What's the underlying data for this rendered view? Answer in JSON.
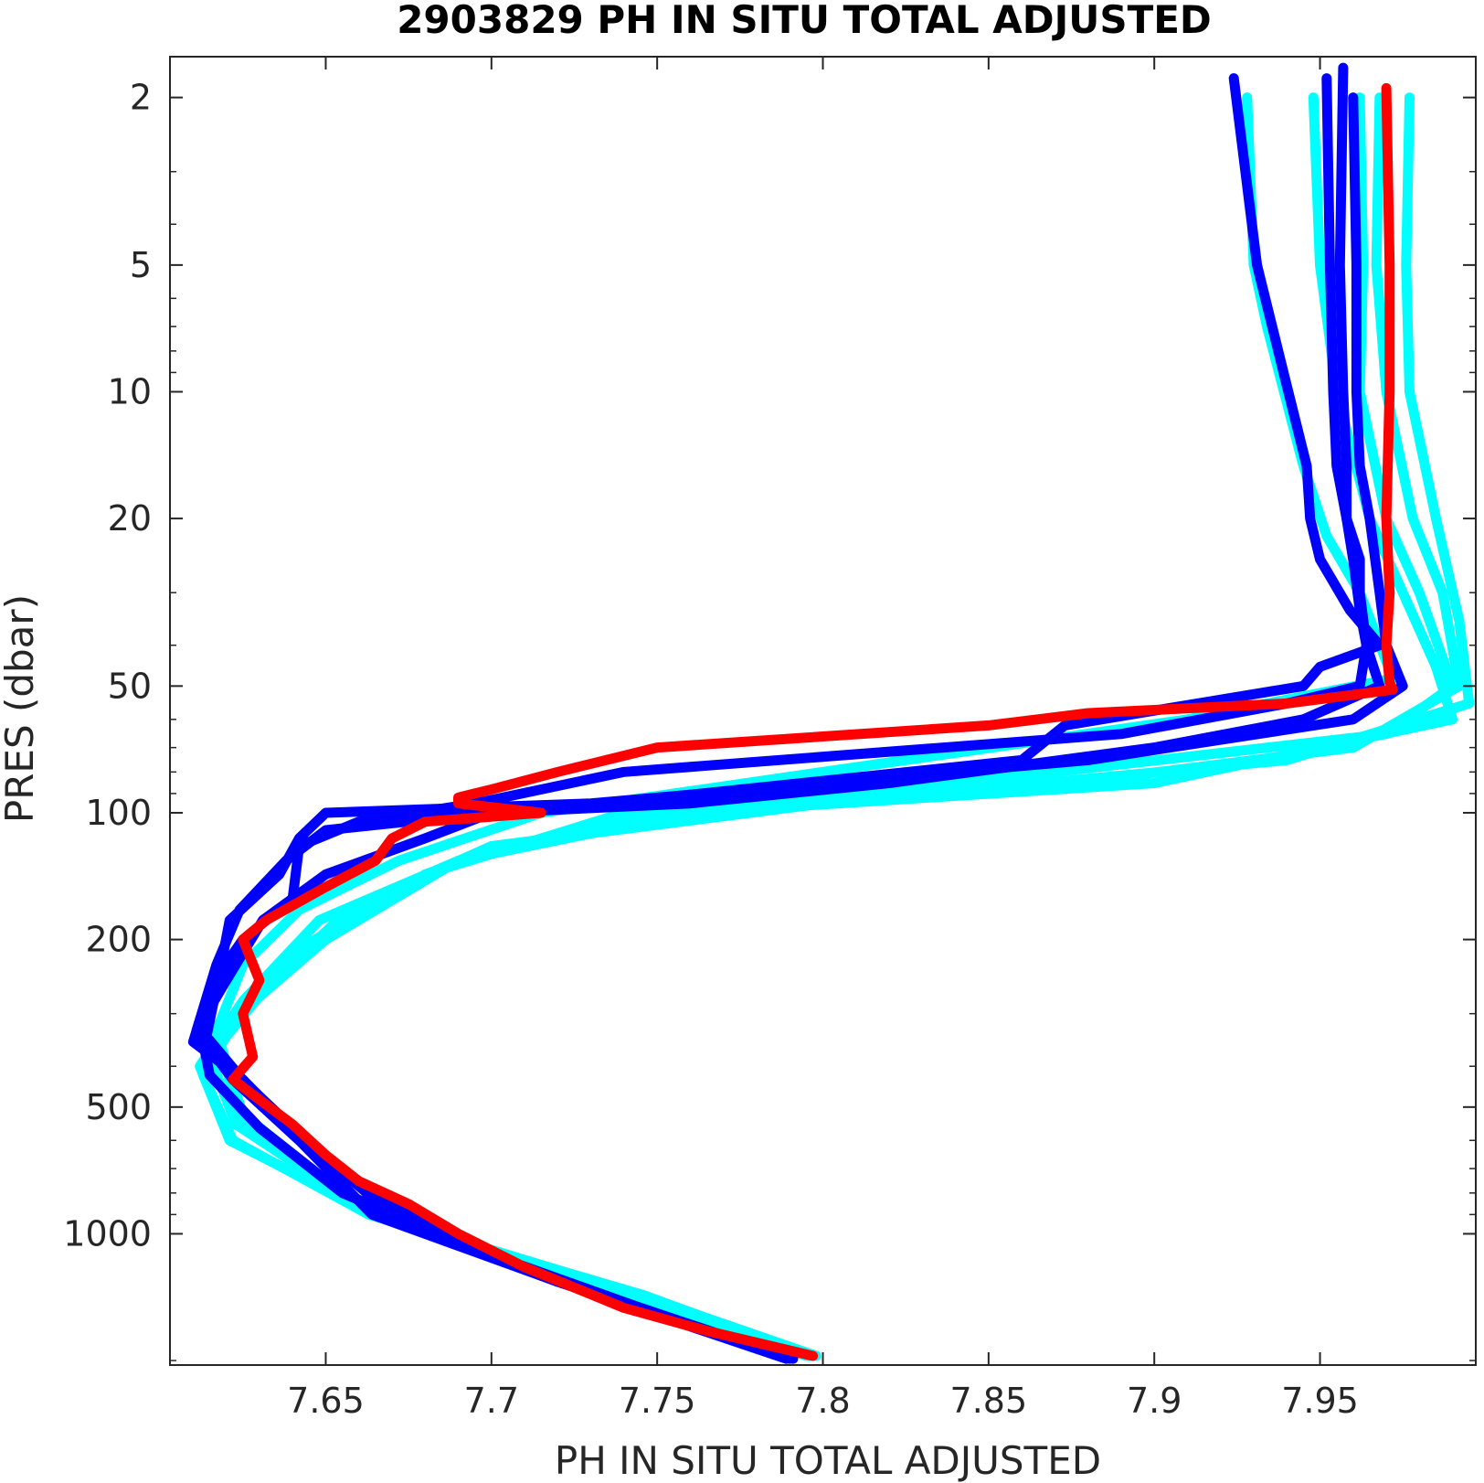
{
  "chart_data": {
    "type": "line",
    "title": "2903829  PH IN SITU TOTAL ADJUSTED",
    "xlabel": "PH IN SITU TOTAL ADJUSTED",
    "ylabel": "PRES (dbar)",
    "xlim": [
      7.603,
      7.997
    ],
    "ylim": [
      1.6,
      2050
    ],
    "y_scale": "log",
    "y_reversed": true,
    "grid": false,
    "x_ticks": [
      7.65,
      7.7,
      7.75,
      7.8,
      7.85,
      7.9,
      7.95
    ],
    "x_tick_labels": [
      "7.65",
      "7.7",
      "7.75",
      "7.8",
      "7.85",
      "7.9",
      "7.95"
    ],
    "y_ticks": [
      2,
      5,
      10,
      20,
      50,
      100,
      200,
      500,
      1000
    ],
    "y_tick_labels": [
      "2",
      "5",
      "10",
      "20",
      "50",
      "100",
      "200",
      "500",
      "1000"
    ],
    "colors": {
      "cyan": "#00ffff",
      "blue": "#0000ff",
      "red": "#ff0000",
      "axis": "#262626"
    },
    "series": [
      {
        "color": "#00ffff",
        "pres": [
          2,
          5,
          7,
          15,
          22,
          30,
          48,
          60,
          80,
          100,
          130,
          170,
          230,
          330,
          430,
          560,
          900,
          1400,
          1950
        ],
        "ph": [
          7.928,
          7.93,
          7.934,
          7.945,
          7.952,
          7.962,
          7.972,
          7.91,
          7.8,
          7.715,
          7.672,
          7.642,
          7.625,
          7.617,
          7.621,
          7.626,
          7.665,
          7.745,
          7.798
        ]
      },
      {
        "color": "#00ffff",
        "pres": [
          2,
          5,
          10,
          20,
          30,
          45,
          60,
          85,
          100,
          130,
          180,
          280,
          400,
          600,
          900,
          1400,
          1950
        ],
        "ph": [
          7.948,
          7.95,
          7.955,
          7.965,
          7.975,
          7.985,
          7.99,
          7.9,
          7.76,
          7.69,
          7.648,
          7.625,
          7.612,
          7.621,
          7.665,
          7.742,
          7.795
        ]
      },
      {
        "color": "#00ffff",
        "pres": [
          2,
          5,
          10,
          20,
          30,
          50,
          70,
          90,
          100,
          130,
          200,
          300,
          420,
          600,
          900,
          1400,
          1950
        ],
        "ph": [
          7.968,
          7.967,
          7.97,
          7.978,
          7.987,
          7.992,
          7.96,
          7.85,
          7.75,
          7.69,
          7.65,
          7.624,
          7.613,
          7.622,
          7.663,
          7.744,
          7.796
        ]
      },
      {
        "color": "#00ffff",
        "pres": [
          2,
          5,
          10,
          20,
          35,
          55,
          75,
          95,
          120,
          170,
          260,
          380,
          550,
          900,
          1400,
          1950
        ],
        "ph": [
          7.977,
          7.976,
          7.977,
          7.985,
          7.992,
          7.995,
          7.94,
          7.8,
          7.7,
          7.657,
          7.632,
          7.615,
          7.623,
          7.664,
          7.743,
          7.797
        ]
      },
      {
        "color": "#00ffff",
        "pres": [
          2,
          5,
          10,
          20,
          30,
          50,
          65,
          80,
          100,
          140,
          220,
          350,
          520,
          900,
          1400,
          1950
        ],
        "ph": [
          7.962,
          7.963,
          7.962,
          7.97,
          7.98,
          7.99,
          7.97,
          7.87,
          7.74,
          7.68,
          7.638,
          7.618,
          7.625,
          7.663,
          7.746,
          7.796
        ]
      },
      {
        "color": "#0000ff",
        "pres": [
          1.8,
          5,
          9,
          15,
          20,
          25,
          33,
          40,
          45,
          50,
          62,
          75,
          95,
          100,
          115,
          140,
          180,
          250,
          320,
          420,
          560,
          800,
          1100,
          1500,
          1980
        ],
        "ph": [
          7.924,
          7.931,
          7.939,
          7.946,
          7.947,
          7.95,
          7.959,
          7.968,
          7.95,
          7.945,
          7.873,
          7.86,
          7.735,
          7.7,
          7.68,
          7.65,
          7.631,
          7.62,
          7.612,
          7.615,
          7.63,
          7.655,
          7.697,
          7.745,
          7.791
        ]
      },
      {
        "color": "#0000ff",
        "pres": [
          1.7,
          5,
          10,
          15,
          20,
          25,
          33,
          40,
          50,
          55,
          65,
          80,
          95,
          105,
          120,
          160,
          200,
          260,
          350,
          430,
          600,
          850,
          1200,
          1500,
          1980
        ],
        "ph": [
          7.957,
          7.956,
          7.957,
          7.958,
          7.958,
          7.96,
          7.962,
          7.964,
          7.962,
          7.94,
          7.89,
          7.74,
          7.695,
          7.66,
          7.642,
          7.64,
          7.625,
          7.615,
          7.61,
          7.625,
          7.643,
          7.668,
          7.708,
          7.745,
          7.79
        ]
      },
      {
        "color": "#0000ff",
        "pres": [
          1.8,
          5,
          10,
          15,
          20,
          25,
          30,
          40,
          50,
          60,
          70,
          85,
          95,
          100,
          110,
          130,
          170,
          230,
          330,
          430,
          600,
          900,
          1300,
          1500,
          1980
        ],
        "ph": [
          7.952,
          7.953,
          7.954,
          7.955,
          7.958,
          7.962,
          7.962,
          7.964,
          7.968,
          7.945,
          7.9,
          7.82,
          7.76,
          7.7,
          7.65,
          7.638,
          7.624,
          7.617,
          7.611,
          7.622,
          7.642,
          7.664,
          7.72,
          7.745,
          7.79
        ]
      },
      {
        "color": "#0000ff",
        "pres": [
          2,
          5,
          10,
          15,
          20,
          30,
          40,
          50,
          60,
          75,
          95,
          100,
          115,
          140,
          180,
          240,
          340,
          440,
          620,
          900,
          1300,
          1980
        ],
        "ph": [
          7.96,
          7.961,
          7.961,
          7.962,
          7.965,
          7.968,
          7.97,
          7.975,
          7.96,
          7.88,
          7.73,
          7.65,
          7.642,
          7.636,
          7.621,
          7.618,
          7.614,
          7.626,
          7.646,
          7.67,
          7.72,
          7.789
        ]
      },
      {
        "color": "#ff0000",
        "pres": [
          1.9,
          5,
          10,
          20,
          30,
          40,
          49,
          51,
          55,
          58,
          62,
          70,
          80,
          88,
          92,
          95,
          100,
          105,
          115,
          130,
          150,
          180,
          200,
          250,
          300,
          380,
          430,
          480,
          550,
          650,
          750,
          850,
          1000,
          1200,
          1500,
          1700,
          1950
        ],
        "ph": [
          7.97,
          7.971,
          7.971,
          7.97,
          7.971,
          7.97,
          7.971,
          7.972,
          7.94,
          7.88,
          7.85,
          7.75,
          7.72,
          7.7,
          7.69,
          7.69,
          7.715,
          7.68,
          7.67,
          7.665,
          7.65,
          7.632,
          7.625,
          7.63,
          7.625,
          7.628,
          7.622,
          7.63,
          7.64,
          7.65,
          7.66,
          7.675,
          7.69,
          7.71,
          7.74,
          7.765,
          7.797
        ]
      }
    ]
  }
}
